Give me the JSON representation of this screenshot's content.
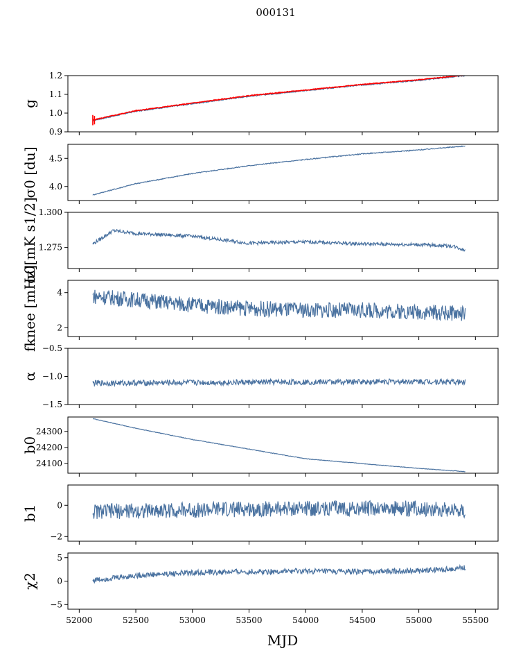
{
  "chart_data": {
    "type": "line",
    "title": "000131",
    "xlabel": "MJD",
    "xlim": [
      51900,
      55700
    ],
    "xticks": [
      52000,
      52500,
      53000,
      53500,
      54000,
      54500,
      55000,
      55500
    ],
    "x_start": 52120,
    "x_end": 55410,
    "line_color": "#4a72a0",
    "overlay_color": "#ff0000",
    "panels": [
      {
        "id": "g",
        "ylabel": "g",
        "ylim": [
          0.9,
          1.2
        ],
        "yticks": [
          "0.9",
          "1.0",
          "1.1",
          "1.2"
        ],
        "x": [
          52120,
          52500,
          53000,
          53500,
          54000,
          54500,
          55000,
          55410
        ],
        "y": [
          0.96,
          1.01,
          1.05,
          1.09,
          1.12,
          1.15,
          1.175,
          1.2
        ]
      },
      {
        "id": "sigma0-du",
        "ylabel": "σ0 [du]",
        "ylim": [
          3.75,
          4.75
        ],
        "yticks": [
          "4.0",
          "4.5"
        ],
        "x": [
          52120,
          52500,
          53000,
          53500,
          54000,
          54500,
          55000,
          55410
        ],
        "y": [
          3.85,
          4.05,
          4.23,
          4.37,
          4.48,
          4.58,
          4.65,
          4.72
        ]
      },
      {
        "id": "sigma0-mk",
        "ylabel": "σ0[mK s1/2]",
        "ylim": [
          1.26,
          1.3
        ],
        "yticks": [
          "1.275",
          "1.300"
        ],
        "x": [
          52120,
          52300,
          52500,
          53000,
          53500,
          54000,
          54500,
          55000,
          55300,
          55410
        ],
        "y": [
          1.2775,
          1.287,
          1.285,
          1.283,
          1.278,
          1.279,
          1.2775,
          1.277,
          1.276,
          1.273
        ]
      },
      {
        "id": "fknee",
        "ylabel": "fknee [mHz]",
        "ylim": [
          1.5,
          4.7
        ],
        "yticks": [
          "2",
          "4"
        ],
        "x": [
          52120,
          52500,
          53000,
          53500,
          54000,
          54500,
          55000,
          55410
        ],
        "y": [
          3.8,
          3.6,
          3.3,
          3.1,
          3.0,
          3.0,
          2.9,
          2.8
        ]
      },
      {
        "id": "alpha",
        "ylabel": "α",
        "ylim": [
          -1.5,
          -0.5
        ],
        "yticks": [
          "−1.5",
          "−1.0",
          "−0.5"
        ],
        "x": [
          52120,
          53000,
          54000,
          55000,
          55410
        ],
        "y": [
          -1.12,
          -1.11,
          -1.1,
          -1.09,
          -1.1
        ]
      },
      {
        "id": "b0",
        "ylabel": "b0",
        "ylim": [
          24040,
          24390
        ],
        "yticks": [
          "24100",
          "24200",
          "24300"
        ],
        "x": [
          52120,
          52500,
          53000,
          53500,
          54000,
          54500,
          55000,
          55410
        ],
        "y": [
          24380,
          24320,
          24250,
          24190,
          24130,
          24100,
          24070,
          24050
        ]
      },
      {
        "id": "b1",
        "ylabel": "b1",
        "ylim": [
          -2.3,
          1.3
        ],
        "yticks": [
          "−2",
          "0"
        ],
        "x": [
          52120,
          53000,
          54000,
          55000,
          55410
        ],
        "y": [
          -0.4,
          -0.3,
          -0.2,
          -0.2,
          -0.3
        ]
      },
      {
        "id": "chi2",
        "ylabel": "χ2",
        "ylim": [
          -6,
          6
        ],
        "yticks": [
          "−5",
          "0",
          "5"
        ],
        "x": [
          52120,
          52500,
          53000,
          53500,
          54000,
          54500,
          55000,
          55410
        ],
        "y": [
          0.2,
          1.2,
          1.8,
          2.0,
          2.1,
          2.0,
          2.2,
          2.8
        ]
      }
    ]
  }
}
